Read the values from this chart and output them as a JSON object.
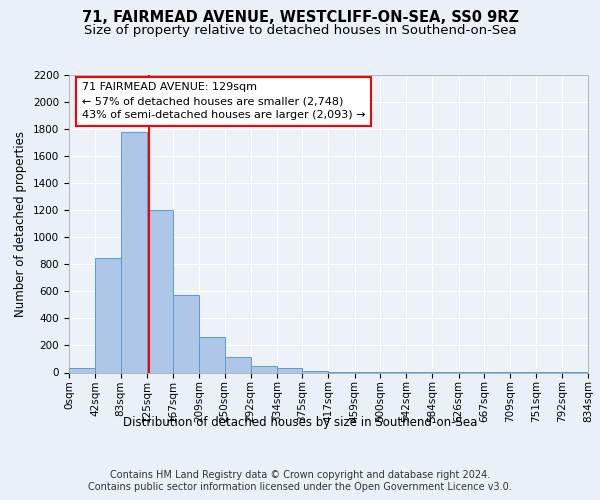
{
  "title_line1": "71, FAIRMEAD AVENUE, WESTCLIFF-ON-SEA, SS0 9RZ",
  "title_line2": "Size of property relative to detached houses in Southend-on-Sea",
  "xlabel": "Distribution of detached houses by size in Southend-on-Sea",
  "ylabel": "Number of detached properties",
  "bin_edges": [
    0,
    42,
    83,
    125,
    167,
    209,
    250,
    292,
    334,
    375,
    417,
    459,
    500,
    542,
    584,
    626,
    667,
    709,
    751,
    792,
    834
  ],
  "bar_heights": [
    30,
    850,
    1780,
    1200,
    575,
    260,
    115,
    50,
    30,
    10,
    5,
    5,
    5,
    5,
    3,
    3,
    3,
    2,
    2,
    2
  ],
  "bar_color": "#aec6e8",
  "bar_edge_color": "#5a9bd4",
  "red_line_x": 129,
  "annotation_line1": "71 FAIRMEAD AVENUE: 129sqm",
  "annotation_line2": "← 57% of detached houses are smaller (2,748)",
  "annotation_line3": "43% of semi-detached houses are larger (2,093) →",
  "ylim": [
    0,
    2200
  ],
  "yticks": [
    0,
    200,
    400,
    600,
    800,
    1000,
    1200,
    1400,
    1600,
    1800,
    2000,
    2200
  ],
  "footer_line1": "Contains HM Land Registry data © Crown copyright and database right 2024.",
  "footer_line2": "Contains public sector information licensed under the Open Government Licence v3.0.",
  "bg_color": "#eaf0f8",
  "plot_bg_color": "#edf2f9",
  "grid_color": "#ffffff",
  "title_fontsize": 10.5,
  "subtitle_fontsize": 9.5,
  "axis_label_fontsize": 8.5,
  "tick_fontsize": 7.5,
  "annotation_fontsize": 8,
  "footer_fontsize": 7
}
